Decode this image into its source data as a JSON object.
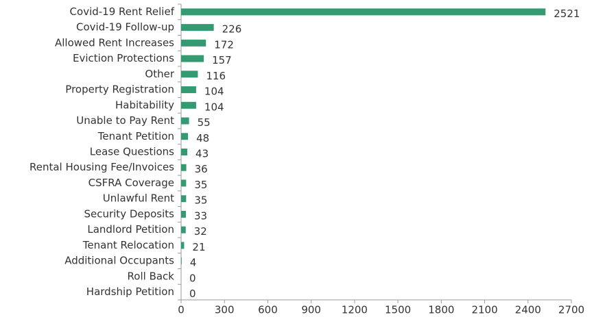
{
  "chart_data": {
    "type": "hbar",
    "categories": [
      "Covid-19 Rent Relief",
      "Covid-19 Follow-up",
      "Allowed Rent Increases",
      "Eviction Protections",
      "Other",
      "Property Registration",
      "Habitability",
      "Unable to Pay Rent",
      "Tenant Petition",
      "Lease Questions",
      "Rental Housing Fee/Invoices",
      "CSFRA Coverage",
      "Unlawful Rent",
      "Security Deposits",
      "Landlord Petition",
      "Tenant Relocation",
      "Additional Occupants",
      "Roll Back",
      "Hardship Petition"
    ],
    "values": [
      2521,
      226,
      172,
      157,
      116,
      104,
      104,
      55,
      48,
      43,
      36,
      35,
      35,
      33,
      32,
      21,
      4,
      0,
      0
    ],
    "color": "#339a72",
    "xlim": [
      0,
      2700
    ],
    "xticks": [
      0,
      300,
      600,
      900,
      1200,
      1500,
      1800,
      2100,
      2400,
      2700
    ]
  }
}
